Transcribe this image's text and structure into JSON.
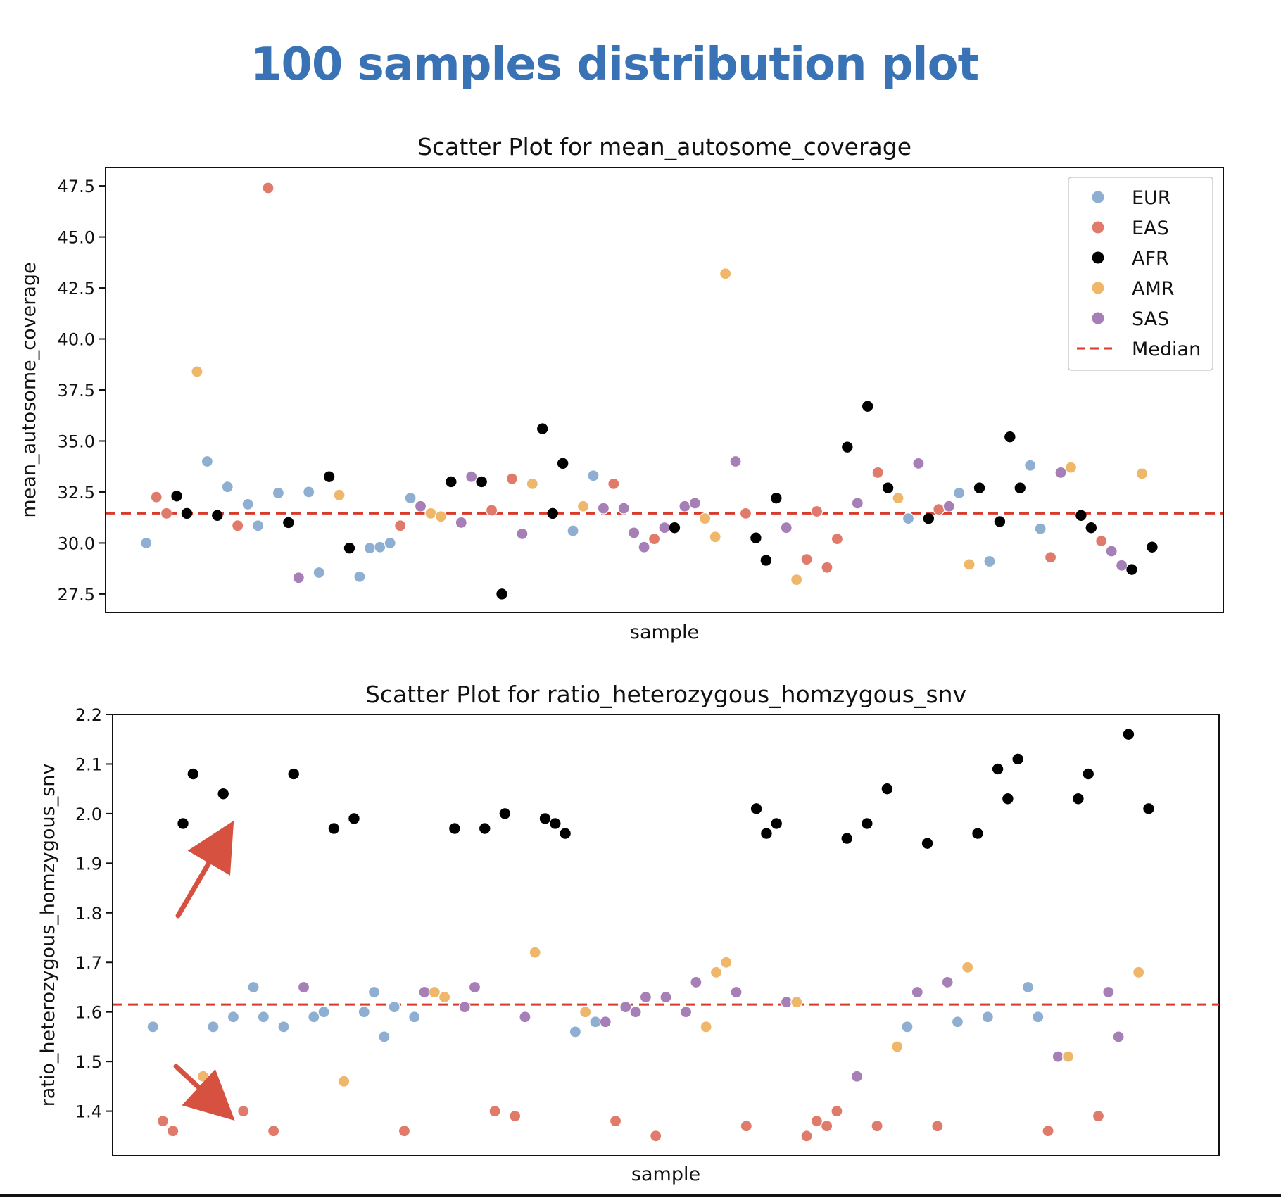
{
  "page_title": "100 samples distribution plot",
  "colors": {
    "EUR": "#8fafd2",
    "EAS": "#e07b6b",
    "AFR": "#000000",
    "AMR": "#efb76a",
    "SAS": "#a77fb7",
    "median": "#d83a2b",
    "title": "#3a73b5",
    "arrow": "#d75141"
  },
  "chart_data": [
    {
      "type": "scatter",
      "title": "Scatter Plot for mean_autosome_coverage",
      "xlabel": "sample",
      "ylabel": "mean_autosome_coverage",
      "ylim": [
        26.6,
        48.4
      ],
      "yticks": [
        "27.5",
        "30.0",
        "32.5",
        "35.0",
        "37.5",
        "40.0",
        "42.5",
        "45.0",
        "47.5"
      ],
      "legend": {
        "position": "top-right",
        "entries": [
          {
            "label": "EUR",
            "kind": "EUR"
          },
          {
            "label": "EAS",
            "kind": "EAS"
          },
          {
            "label": "AFR",
            "kind": "AFR"
          },
          {
            "label": "AMR",
            "kind": "AMR"
          },
          {
            "label": "SAS",
            "kind": "SAS"
          },
          {
            "label": "Median",
            "kind": "median"
          }
        ]
      },
      "median": 31.45,
      "xlim": [
        -4,
        106
      ],
      "points": [
        {
          "x": 0,
          "y": 30.0,
          "g": "EUR"
        },
        {
          "x": 1,
          "y": 32.25,
          "g": "EAS"
        },
        {
          "x": 2,
          "y": 31.45,
          "g": "EAS"
        },
        {
          "x": 3,
          "y": 32.3,
          "g": "AFR"
        },
        {
          "x": 4,
          "y": 31.45,
          "g": "AFR"
        },
        {
          "x": 5,
          "y": 38.4,
          "g": "AMR"
        },
        {
          "x": 6,
          "y": 34.0,
          "g": "EUR"
        },
        {
          "x": 7,
          "y": 31.35,
          "g": "AFR"
        },
        {
          "x": 8,
          "y": 32.75,
          "g": "EUR"
        },
        {
          "x": 9,
          "y": 30.85,
          "g": "EAS"
        },
        {
          "x": 10,
          "y": 31.9,
          "g": "EUR"
        },
        {
          "x": 11,
          "y": 30.85,
          "g": "EUR"
        },
        {
          "x": 12,
          "y": 47.4,
          "g": "EAS"
        },
        {
          "x": 13,
          "y": 32.45,
          "g": "EUR"
        },
        {
          "x": 14,
          "y": 31.0,
          "g": "AFR"
        },
        {
          "x": 15,
          "y": 28.3,
          "g": "SAS"
        },
        {
          "x": 16,
          "y": 32.5,
          "g": "EUR"
        },
        {
          "x": 17,
          "y": 28.55,
          "g": "EUR"
        },
        {
          "x": 18,
          "y": 33.25,
          "g": "AFR"
        },
        {
          "x": 19,
          "y": 32.35,
          "g": "AMR"
        },
        {
          "x": 20,
          "y": 29.75,
          "g": "AFR"
        },
        {
          "x": 21,
          "y": 28.35,
          "g": "EUR"
        },
        {
          "x": 22,
          "y": 29.75,
          "g": "EUR"
        },
        {
          "x": 23,
          "y": 29.8,
          "g": "EUR"
        },
        {
          "x": 24,
          "y": 30.0,
          "g": "EUR"
        },
        {
          "x": 25,
          "y": 30.85,
          "g": "EAS"
        },
        {
          "x": 26,
          "y": 32.2,
          "g": "EUR"
        },
        {
          "x": 27,
          "y": 31.8,
          "g": "SAS"
        },
        {
          "x": 28,
          "y": 31.45,
          "g": "AMR"
        },
        {
          "x": 29,
          "y": 31.3,
          "g": "AMR"
        },
        {
          "x": 30,
          "y": 33.0,
          "g": "AFR"
        },
        {
          "x": 31,
          "y": 31.0,
          "g": "SAS"
        },
        {
          "x": 32,
          "y": 33.25,
          "g": "SAS"
        },
        {
          "x": 33,
          "y": 33.0,
          "g": "AFR"
        },
        {
          "x": 34,
          "y": 31.6,
          "g": "EAS"
        },
        {
          "x": 35,
          "y": 27.5,
          "g": "AFR"
        },
        {
          "x": 36,
          "y": 33.15,
          "g": "EAS"
        },
        {
          "x": 37,
          "y": 30.45,
          "g": "SAS"
        },
        {
          "x": 38,
          "y": 32.9,
          "g": "AMR"
        },
        {
          "x": 39,
          "y": 35.6,
          "g": "AFR"
        },
        {
          "x": 40,
          "y": 31.45,
          "g": "AFR"
        },
        {
          "x": 41,
          "y": 33.9,
          "g": "AFR"
        },
        {
          "x": 42,
          "y": 30.6,
          "g": "EUR"
        },
        {
          "x": 43,
          "y": 31.8,
          "g": "AMR"
        },
        {
          "x": 44,
          "y": 33.3,
          "g": "EUR"
        },
        {
          "x": 45,
          "y": 31.7,
          "g": "SAS"
        },
        {
          "x": 46,
          "y": 32.9,
          "g": "EAS"
        },
        {
          "x": 47,
          "y": 31.7,
          "g": "SAS"
        },
        {
          "x": 48,
          "y": 30.5,
          "g": "SAS"
        },
        {
          "x": 49,
          "y": 29.8,
          "g": "SAS"
        },
        {
          "x": 50,
          "y": 30.2,
          "g": "EAS"
        },
        {
          "x": 51,
          "y": 30.75,
          "g": "SAS"
        },
        {
          "x": 52,
          "y": 30.75,
          "g": "AFR"
        },
        {
          "x": 53,
          "y": 31.8,
          "g": "SAS"
        },
        {
          "x": 54,
          "y": 31.95,
          "g": "SAS"
        },
        {
          "x": 55,
          "y": 31.2,
          "g": "AMR"
        },
        {
          "x": 56,
          "y": 30.3,
          "g": "AMR"
        },
        {
          "x": 57,
          "y": 43.2,
          "g": "AMR"
        },
        {
          "x": 58,
          "y": 34.0,
          "g": "SAS"
        },
        {
          "x": 59,
          "y": 31.45,
          "g": "EAS"
        },
        {
          "x": 60,
          "y": 30.25,
          "g": "AFR"
        },
        {
          "x": 61,
          "y": 29.15,
          "g": "AFR"
        },
        {
          "x": 62,
          "y": 32.2,
          "g": "AFR"
        },
        {
          "x": 63,
          "y": 30.75,
          "g": "SAS"
        },
        {
          "x": 64,
          "y": 28.2,
          "g": "AMR"
        },
        {
          "x": 65,
          "y": 29.2,
          "g": "EAS"
        },
        {
          "x": 66,
          "y": 31.55,
          "g": "EAS"
        },
        {
          "x": 67,
          "y": 28.8,
          "g": "EAS"
        },
        {
          "x": 68,
          "y": 30.2,
          "g": "EAS"
        },
        {
          "x": 69,
          "y": 34.7,
          "g": "AFR"
        },
        {
          "x": 70,
          "y": 31.95,
          "g": "SAS"
        },
        {
          "x": 71,
          "y": 36.7,
          "g": "AFR"
        },
        {
          "x": 72,
          "y": 33.45,
          "g": "EAS"
        },
        {
          "x": 73,
          "y": 32.7,
          "g": "AFR"
        },
        {
          "x": 74,
          "y": 32.2,
          "g": "AMR"
        },
        {
          "x": 75,
          "y": 31.2,
          "g": "EUR"
        },
        {
          "x": 76,
          "y": 33.9,
          "g": "SAS"
        },
        {
          "x": 77,
          "y": 31.2,
          "g": "AFR"
        },
        {
          "x": 78,
          "y": 31.65,
          "g": "EAS"
        },
        {
          "x": 79,
          "y": 31.8,
          "g": "SAS"
        },
        {
          "x": 80,
          "y": 32.45,
          "g": "EUR"
        },
        {
          "x": 81,
          "y": 28.95,
          "g": "AMR"
        },
        {
          "x": 82,
          "y": 32.7,
          "g": "AFR"
        },
        {
          "x": 83,
          "y": 29.1,
          "g": "EUR"
        },
        {
          "x": 84,
          "y": 31.05,
          "g": "AFR"
        },
        {
          "x": 85,
          "y": 35.2,
          "g": "AFR"
        },
        {
          "x": 86,
          "y": 32.7,
          "g": "AFR"
        },
        {
          "x": 87,
          "y": 33.8,
          "g": "EUR"
        },
        {
          "x": 88,
          "y": 30.7,
          "g": "EUR"
        },
        {
          "x": 89,
          "y": 29.3,
          "g": "EAS"
        },
        {
          "x": 90,
          "y": 33.45,
          "g": "SAS"
        },
        {
          "x": 91,
          "y": 33.7,
          "g": "AMR"
        },
        {
          "x": 92,
          "y": 31.35,
          "g": "AFR"
        },
        {
          "x": 93,
          "y": 30.75,
          "g": "AFR"
        },
        {
          "x": 94,
          "y": 30.1,
          "g": "EAS"
        },
        {
          "x": 95,
          "y": 29.6,
          "g": "SAS"
        },
        {
          "x": 96,
          "y": 28.9,
          "g": "SAS"
        },
        {
          "x": 97,
          "y": 28.7,
          "g": "AFR"
        },
        {
          "x": 98,
          "y": 33.4,
          "g": "AMR"
        },
        {
          "x": 99,
          "y": 29.8,
          "g": "AFR"
        }
      ]
    },
    {
      "type": "scatter",
      "title": "Scatter Plot for ratio_heterozygous_homzygous_snv",
      "xlabel": "sample",
      "ylabel": "ratio_heterozygous_homzygous_snv",
      "ylim": [
        1.31,
        2.2
      ],
      "yticks": [
        "1.4",
        "1.5",
        "1.6",
        "1.7",
        "1.8",
        "1.9",
        "2.0",
        "2.1",
        "2.2"
      ],
      "median": 1.615,
      "xlim": [
        -4,
        106
      ],
      "points": [
        {
          "x": 0,
          "y": 1.57,
          "g": "EUR"
        },
        {
          "x": 1,
          "y": 1.38,
          "g": "EAS"
        },
        {
          "x": 2,
          "y": 1.36,
          "g": "EAS"
        },
        {
          "x": 3,
          "y": 1.98,
          "g": "AFR"
        },
        {
          "x": 4,
          "y": 2.08,
          "g": "AFR"
        },
        {
          "x": 5,
          "y": 1.47,
          "g": "AMR"
        },
        {
          "x": 6,
          "y": 1.57,
          "g": "EUR"
        },
        {
          "x": 7,
          "y": 2.04,
          "g": "AFR"
        },
        {
          "x": 8,
          "y": 1.59,
          "g": "EUR"
        },
        {
          "x": 9,
          "y": 1.4,
          "g": "EAS"
        },
        {
          "x": 10,
          "y": 1.65,
          "g": "EUR"
        },
        {
          "x": 11,
          "y": 1.59,
          "g": "EUR"
        },
        {
          "x": 12,
          "y": 1.36,
          "g": "EAS"
        },
        {
          "x": 13,
          "y": 1.57,
          "g": "EUR"
        },
        {
          "x": 14,
          "y": 2.08,
          "g": "AFR"
        },
        {
          "x": 15,
          "y": 1.65,
          "g": "SAS"
        },
        {
          "x": 16,
          "y": 1.59,
          "g": "EUR"
        },
        {
          "x": 17,
          "y": 1.6,
          "g": "EUR"
        },
        {
          "x": 18,
          "y": 1.97,
          "g": "AFR"
        },
        {
          "x": 19,
          "y": 1.46,
          "g": "AMR"
        },
        {
          "x": 20,
          "y": 1.99,
          "g": "AFR"
        },
        {
          "x": 21,
          "y": 1.6,
          "g": "EUR"
        },
        {
          "x": 22,
          "y": 1.64,
          "g": "EUR"
        },
        {
          "x": 23,
          "y": 1.55,
          "g": "EUR"
        },
        {
          "x": 24,
          "y": 1.61,
          "g": "EUR"
        },
        {
          "x": 25,
          "y": 1.36,
          "g": "EAS"
        },
        {
          "x": 26,
          "y": 1.59,
          "g": "EUR"
        },
        {
          "x": 27,
          "y": 1.64,
          "g": "SAS"
        },
        {
          "x": 28,
          "y": 1.64,
          "g": "AMR"
        },
        {
          "x": 29,
          "y": 1.63,
          "g": "AMR"
        },
        {
          "x": 30,
          "y": 1.97,
          "g": "AFR"
        },
        {
          "x": 31,
          "y": 1.61,
          "g": "SAS"
        },
        {
          "x": 32,
          "y": 1.65,
          "g": "SAS"
        },
        {
          "x": 33,
          "y": 1.97,
          "g": "AFR"
        },
        {
          "x": 34,
          "y": 1.4,
          "g": "EAS"
        },
        {
          "x": 35,
          "y": 2.0,
          "g": "AFR"
        },
        {
          "x": 36,
          "y": 1.39,
          "g": "EAS"
        },
        {
          "x": 37,
          "y": 1.59,
          "g": "SAS"
        },
        {
          "x": 38,
          "y": 1.72,
          "g": "AMR"
        },
        {
          "x": 39,
          "y": 1.99,
          "g": "AFR"
        },
        {
          "x": 40,
          "y": 1.98,
          "g": "AFR"
        },
        {
          "x": 41,
          "y": 1.96,
          "g": "AFR"
        },
        {
          "x": 42,
          "y": 1.56,
          "g": "EUR"
        },
        {
          "x": 43,
          "y": 1.6,
          "g": "AMR"
        },
        {
          "x": 44,
          "y": 1.58,
          "g": "EUR"
        },
        {
          "x": 45,
          "y": 1.58,
          "g": "SAS"
        },
        {
          "x": 46,
          "y": 1.38,
          "g": "EAS"
        },
        {
          "x": 47,
          "y": 1.61,
          "g": "SAS"
        },
        {
          "x": 48,
          "y": 1.6,
          "g": "SAS"
        },
        {
          "x": 49,
          "y": 1.63,
          "g": "SAS"
        },
        {
          "x": 50,
          "y": 1.35,
          "g": "EAS"
        },
        {
          "x": 51,
          "y": 1.63,
          "g": "SAS"
        },
        {
          "x": 53,
          "y": 1.6,
          "g": "SAS"
        },
        {
          "x": 54,
          "y": 1.66,
          "g": "SAS"
        },
        {
          "x": 55,
          "y": 1.57,
          "g": "AMR"
        },
        {
          "x": 56,
          "y": 1.68,
          "g": "AMR"
        },
        {
          "x": 57,
          "y": 1.7,
          "g": "AMR"
        },
        {
          "x": 58,
          "y": 1.64,
          "g": "SAS"
        },
        {
          "x": 59,
          "y": 1.37,
          "g": "EAS"
        },
        {
          "x": 60,
          "y": 2.01,
          "g": "AFR"
        },
        {
          "x": 61,
          "y": 1.96,
          "g": "AFR"
        },
        {
          "x": 62,
          "y": 1.98,
          "g": "AFR"
        },
        {
          "x": 63,
          "y": 1.62,
          "g": "SAS"
        },
        {
          "x": 64,
          "y": 1.62,
          "g": "AMR"
        },
        {
          "x": 65,
          "y": 1.35,
          "g": "EAS"
        },
        {
          "x": 66,
          "y": 1.38,
          "g": "EAS"
        },
        {
          "x": 67,
          "y": 1.37,
          "g": "EAS"
        },
        {
          "x": 68,
          "y": 1.4,
          "g": "EAS"
        },
        {
          "x": 69,
          "y": 1.95,
          "g": "AFR"
        },
        {
          "x": 70,
          "y": 1.47,
          "g": "SAS"
        },
        {
          "x": 71,
          "y": 1.98,
          "g": "AFR"
        },
        {
          "x": 72,
          "y": 1.37,
          "g": "EAS"
        },
        {
          "x": 73,
          "y": 2.05,
          "g": "AFR"
        },
        {
          "x": 74,
          "y": 1.53,
          "g": "AMR"
        },
        {
          "x": 75,
          "y": 1.57,
          "g": "EUR"
        },
        {
          "x": 76,
          "y": 1.64,
          "g": "SAS"
        },
        {
          "x": 77,
          "y": 1.94,
          "g": "AFR"
        },
        {
          "x": 78,
          "y": 1.37,
          "g": "EAS"
        },
        {
          "x": 79,
          "y": 1.66,
          "g": "SAS"
        },
        {
          "x": 80,
          "y": 1.58,
          "g": "EUR"
        },
        {
          "x": 81,
          "y": 1.69,
          "g": "AMR"
        },
        {
          "x": 82,
          "y": 1.96,
          "g": "AFR"
        },
        {
          "x": 83,
          "y": 1.59,
          "g": "EUR"
        },
        {
          "x": 84,
          "y": 2.09,
          "g": "AFR"
        },
        {
          "x": 85,
          "y": 2.03,
          "g": "AFR"
        },
        {
          "x": 86,
          "y": 2.11,
          "g": "AFR"
        },
        {
          "x": 87,
          "y": 1.65,
          "g": "EUR"
        },
        {
          "x": 88,
          "y": 1.59,
          "g": "EUR"
        },
        {
          "x": 89,
          "y": 1.36,
          "g": "EAS"
        },
        {
          "x": 90,
          "y": 1.51,
          "g": "SAS"
        },
        {
          "x": 91,
          "y": 1.51,
          "g": "AMR"
        },
        {
          "x": 92,
          "y": 2.03,
          "g": "AFR"
        },
        {
          "x": 93,
          "y": 2.08,
          "g": "AFR"
        },
        {
          "x": 94,
          "y": 1.39,
          "g": "EAS"
        },
        {
          "x": 95,
          "y": 1.64,
          "g": "SAS"
        },
        {
          "x": 96,
          "y": 1.55,
          "g": "SAS"
        },
        {
          "x": 97,
          "y": 2.16,
          "g": "AFR"
        },
        {
          "x": 98,
          "y": 1.68,
          "g": "AMR"
        },
        {
          "x": 99,
          "y": 2.01,
          "g": "AFR"
        }
      ]
    }
  ]
}
